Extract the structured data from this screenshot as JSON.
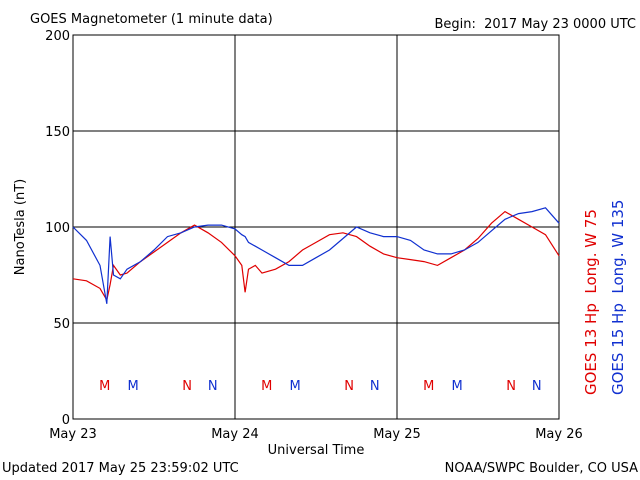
{
  "chart_data": {
    "type": "line",
    "title": "GOES Magnetometer (1 minute data)",
    "subtitle": "Begin:  2017 May 23 0000 UTC",
    "y_label": "NanoTesla (nT)",
    "x_label": "Universal Time",
    "footer_left": "Updated 2017 May 25 23:59:02 UTC",
    "footer_right": "NOAA/SWPC Boulder, CO USA",
    "xlim": [
      0,
      72
    ],
    "xticks": [
      {
        "value": 0,
        "label": "May 23"
      },
      {
        "value": 24,
        "label": "May 24"
      },
      {
        "value": 48,
        "label": "May 25"
      },
      {
        "value": 72,
        "label": "May 26"
      }
    ],
    "ylim": [
      0,
      200
    ],
    "yticks": [
      0,
      50,
      100,
      150,
      200
    ],
    "grid": true,
    "x": [
      0,
      2,
      4,
      5,
      5.5,
      6,
      7,
      8,
      10,
      12,
      14,
      16,
      18,
      20,
      22,
      24,
      25,
      25.5,
      26,
      27,
      28,
      30,
      32,
      34,
      36,
      38,
      40,
      42,
      44,
      46,
      48,
      50,
      52,
      54,
      56,
      58,
      60,
      62,
      64,
      66,
      68,
      70,
      72
    ],
    "series": [
      {
        "name": "GOES 13 Hp  Long. W 75",
        "color": "#e00000",
        "values": [
          73,
          72,
          68,
          62,
          70,
          80,
          75,
          76,
          82,
          87,
          92,
          97,
          101,
          97,
          92,
          85,
          80,
          66,
          78,
          80,
          76,
          78,
          82,
          88,
          92,
          96,
          97,
          95,
          90,
          86,
          84,
          83,
          82,
          80,
          84,
          88,
          94,
          102,
          108,
          104,
          100,
          96,
          85
        ]
      },
      {
        "name": "GOES 15 Hp  Long. W 135",
        "color": "#1030d0",
        "values": [
          100,
          93,
          80,
          60,
          95,
          75,
          73,
          78,
          82,
          88,
          95,
          97,
          100,
          101,
          101,
          99,
          96,
          95,
          92,
          90,
          88,
          84,
          80,
          80,
          84,
          88,
          94,
          100,
          97,
          95,
          95,
          93,
          88,
          86,
          86,
          88,
          92,
          98,
          104,
          107,
          108,
          110,
          102
        ]
      }
    ],
    "annotations": [
      {
        "label": "M",
        "x": 4.7,
        "series": 0
      },
      {
        "label": "M",
        "x": 8.9,
        "series": 1
      },
      {
        "label": "N",
        "x": 16.9,
        "series": 0
      },
      {
        "label": "N",
        "x": 20.7,
        "series": 1
      },
      {
        "label": "M",
        "x": 28.7,
        "series": 0
      },
      {
        "label": "M",
        "x": 32.9,
        "series": 1
      },
      {
        "label": "N",
        "x": 40.9,
        "series": 0
      },
      {
        "label": "N",
        "x": 44.7,
        "series": 1
      },
      {
        "label": "M",
        "x": 52.7,
        "series": 0
      },
      {
        "label": "M",
        "x": 56.9,
        "series": 1
      },
      {
        "label": "N",
        "x": 64.9,
        "series": 0
      },
      {
        "label": "N",
        "x": 68.7,
        "series": 1
      }
    ]
  }
}
